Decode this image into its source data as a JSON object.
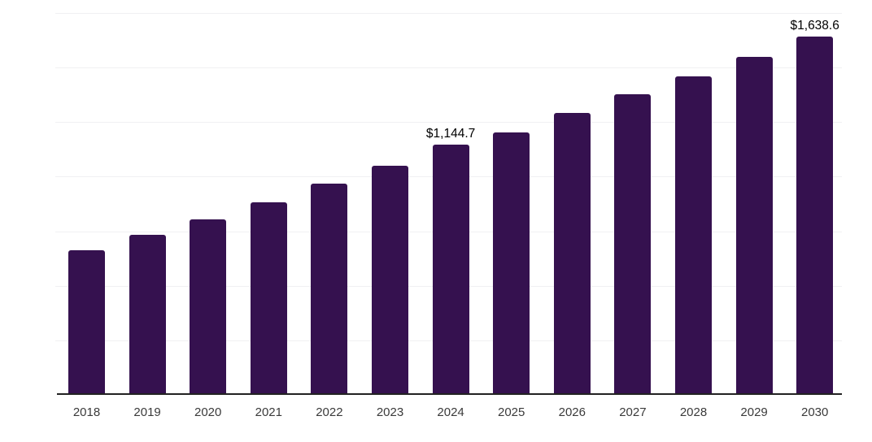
{
  "chart_data": {
    "type": "bar",
    "title": "",
    "xlabel": "",
    "ylabel": "",
    "categories": [
      "2018",
      "2019",
      "2020",
      "2021",
      "2022",
      "2023",
      "2024",
      "2025",
      "2026",
      "2027",
      "2028",
      "2029",
      "2030"
    ],
    "values": [
      660,
      728,
      801,
      879,
      964,
      1046,
      1144.7,
      1200,
      1288,
      1374,
      1456,
      1545,
      1638.6
    ],
    "data_labels": [
      {
        "category": "2024",
        "text": "$1,144.7"
      },
      {
        "category": "2030",
        "text": "$1,638.6"
      }
    ],
    "ylim": [
      0,
      1750
    ],
    "grid_step": 250,
    "grid": true,
    "legend": false,
    "y_axis_ticks_visible": false
  },
  "colors": {
    "bar": "#35114f",
    "gridline": "#f0f0f2",
    "axis": "#222222",
    "tick_label": "#3a3a3a",
    "data_label": "#000000",
    "background": "#ffffff"
  }
}
